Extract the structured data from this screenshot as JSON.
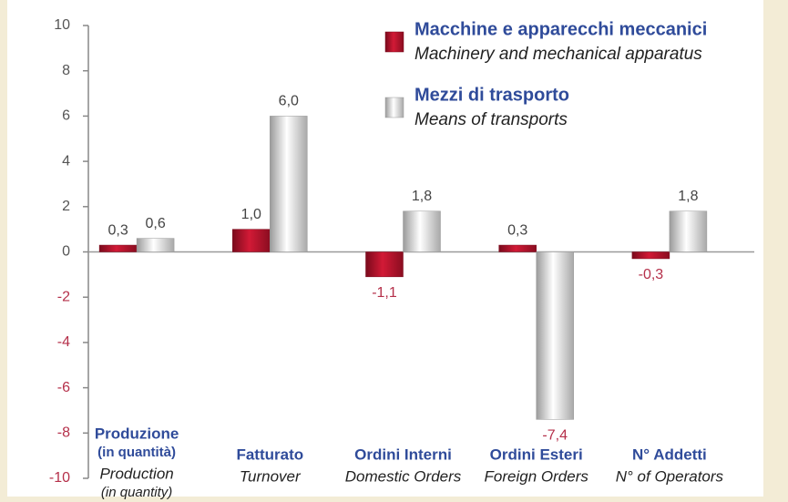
{
  "chart_data": {
    "type": "bar",
    "categories": [
      [
        "Produzione",
        "(in quantità)"
      ],
      [
        "Fatturato"
      ],
      [
        "Ordini Interni"
      ],
      [
        "Ordini Esteri"
      ],
      [
        "N° Addetti"
      ]
    ],
    "categories_en": [
      [
        "Production",
        "(in quantity)"
      ],
      [
        "Turnover"
      ],
      [
        "Domestic Orders"
      ],
      [
        "Foreign Orders"
      ],
      [
        "N° of Operators"
      ]
    ],
    "series": [
      {
        "name": "Macchine e apparecchi meccanici",
        "name_en": "Machinery and mechanical apparatus",
        "color": "#b0132b",
        "values": [
          0.3,
          1.0,
          -1.1,
          0.3,
          -0.3
        ],
        "value_labels": [
          "0,3",
          "1,0",
          "-1,1",
          "0,3",
          "-0,3"
        ]
      },
      {
        "name": "Mezzi di trasporto",
        "name_en": "Means of transports",
        "color": "#c8c8c8",
        "values": [
          0.6,
          6.0,
          1.8,
          -7.4,
          1.8
        ],
        "value_labels": [
          "0,6",
          "6,0",
          "1,8",
          "-7,4",
          "1,8"
        ]
      }
    ],
    "ylim": [
      -10,
      10
    ],
    "yticks": [
      -10,
      -8,
      -6,
      -4,
      -2,
      0,
      2,
      4,
      6,
      8,
      10
    ]
  }
}
